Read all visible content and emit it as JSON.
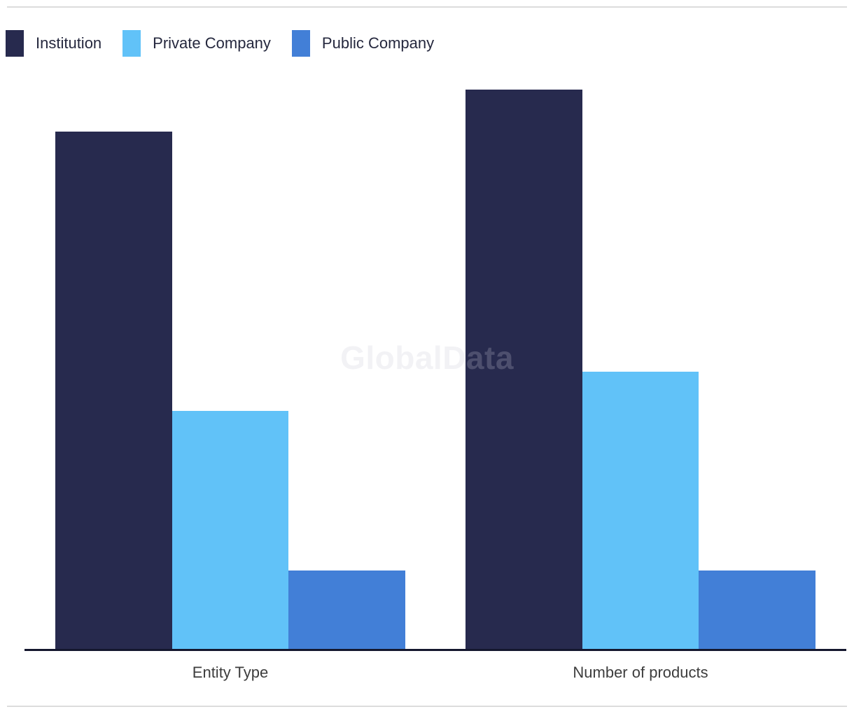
{
  "page": {
    "watermark": "GlobalData"
  },
  "chart_data": {
    "type": "bar",
    "title": "",
    "categories": [
      "Entity Type",
      "Number of products"
    ],
    "series": [
      {
        "name": "Institution",
        "color": "#272a4e",
        "values": [
          92.5,
          100
        ]
      },
      {
        "name": "Private Company",
        "color": "#61c2f8",
        "values": [
          42.5,
          49.5
        ]
      },
      {
        "name": "Public Company",
        "color": "#427fd7",
        "values": [
          14,
          14
        ]
      }
    ],
    "xlabel": "",
    "ylabel": "",
    "ylim": [
      0,
      100
    ],
    "y_axis_visible": false,
    "grid": false,
    "legend_position": "top-left",
    "units": "relative height (no y-axis scale shown in chart)"
  },
  "colors": {
    "axis_line": "#14172e",
    "divider_rule": "#dcdcdc",
    "label_text": "#3d3d3d",
    "legend_text": "#25283e"
  }
}
